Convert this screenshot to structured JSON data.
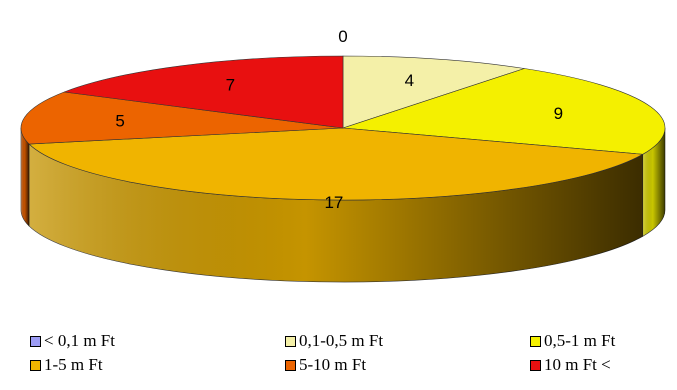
{
  "chart_data": {
    "type": "pie",
    "categories": [
      "< 0,1 m Ft",
      "0,1-0,5 m Ft",
      "0,5-1 m Ft",
      "1-5 m Ft",
      "5-10 m Ft",
      "10 m Ft <"
    ],
    "values": [
      0,
      4,
      9,
      17,
      5,
      7
    ],
    "data_labels": [
      "0",
      "4",
      "9",
      "17",
      "5",
      "7"
    ],
    "colors": [
      "#9c9cf4",
      "#f4f0a8",
      "#f4f000",
      "#f0b400",
      "#ec6400",
      "#e81010"
    ],
    "3d": true,
    "legend_position": "bottom"
  },
  "legend": {
    "items": [
      {
        "label": "< 0,1 m Ft"
      },
      {
        "label": "0,1-0,5 m Ft"
      },
      {
        "label": "0,5-1 m Ft"
      },
      {
        "label": "1-5 m Ft"
      },
      {
        "label": "5-10 m Ft"
      },
      {
        "label": "10 m Ft <"
      }
    ]
  }
}
